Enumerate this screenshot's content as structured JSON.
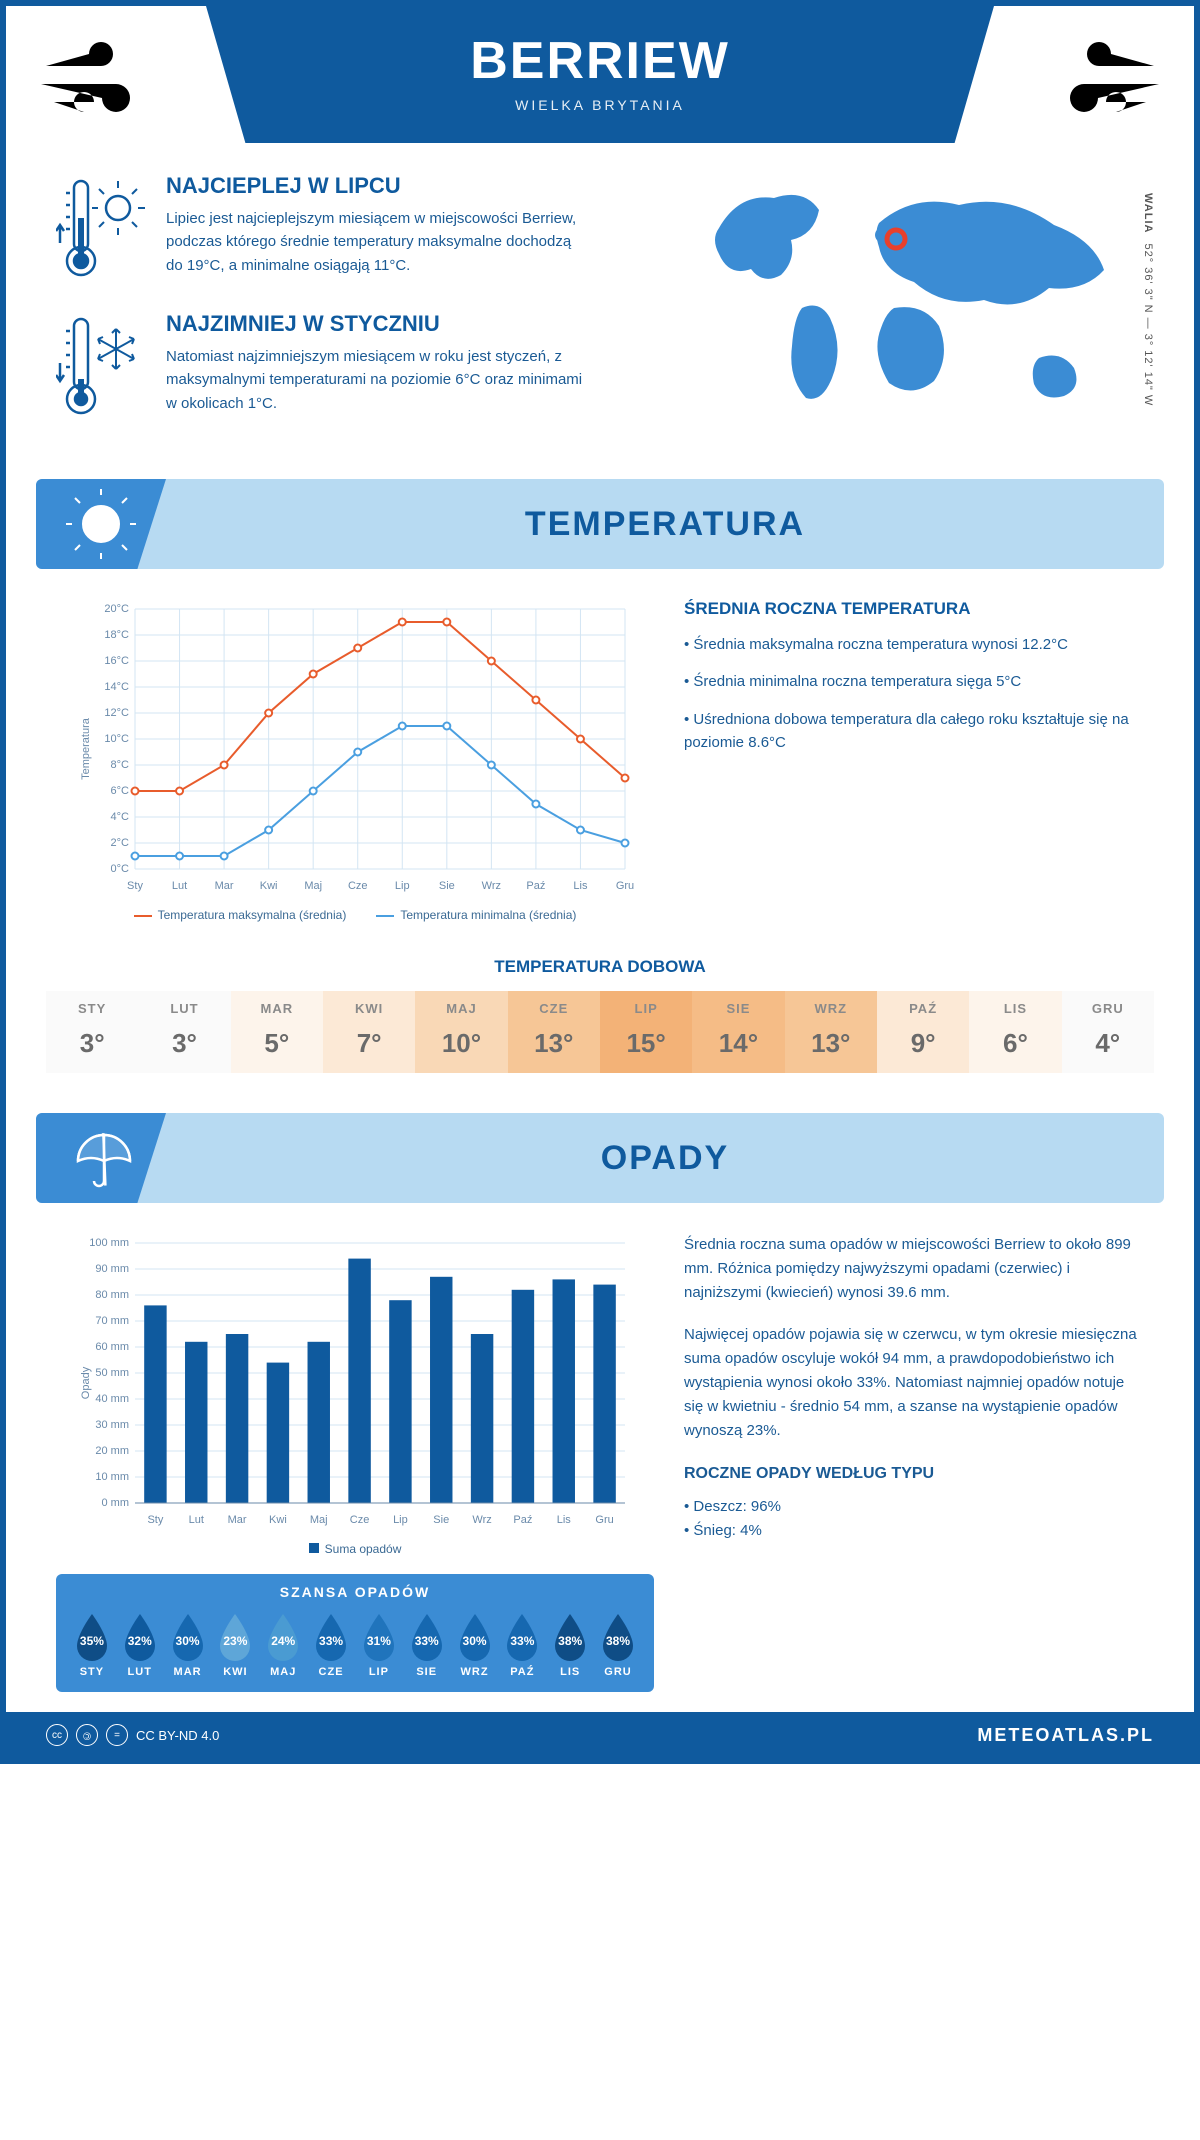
{
  "header": {
    "title": "BERRIEW",
    "subtitle": "WIELKA BRYTANIA"
  },
  "coords": {
    "region": "WALIA",
    "text": "52° 36' 3\" N — 3° 12' 14\" W"
  },
  "intro": {
    "hot": {
      "title": "NAJCIEPLEJ W LIPCU",
      "text": "Lipiec jest najcieplejszym miesiącem w miejscowości Berriew, podczas którego średnie temperatury maksymalne dochodzą do 19°C, a minimalne osiągają 11°C."
    },
    "cold": {
      "title": "NAJZIMNIEJ W STYCZNIU",
      "text": "Natomiast najzimniejszym miesiącem w roku jest styczeń, z maksymalnymi temperaturami na poziomie 6°C oraz minimami w okolicach 1°C."
    }
  },
  "months_short": [
    "Sty",
    "Lut",
    "Mar",
    "Kwi",
    "Maj",
    "Cze",
    "Lip",
    "Sie",
    "Wrz",
    "Paź",
    "Lis",
    "Gru"
  ],
  "months_upper": [
    "STY",
    "LUT",
    "MAR",
    "KWI",
    "MAJ",
    "CZE",
    "LIP",
    "SIE",
    "WRZ",
    "PAŹ",
    "LIS",
    "GRU"
  ],
  "temperature": {
    "banner": "TEMPERATURA",
    "chart": {
      "type": "line",
      "ylabel": "Temperatura",
      "ylim": [
        0,
        20
      ],
      "ytick_step": 2,
      "ytick_suffix": "°C",
      "grid_color": "#d3e5f3",
      "series": [
        {
          "name": "Temperatura maksymalna (średnia)",
          "color": "#e85c2c",
          "values": [
            6,
            6,
            8,
            12,
            15,
            17,
            19,
            19,
            16,
            13,
            10,
            7
          ]
        },
        {
          "name": "Temperatura minimalna (średnia)",
          "color": "#4a9fe0",
          "values": [
            1,
            1,
            1,
            3,
            6,
            9,
            11,
            11,
            8,
            5,
            3,
            2
          ]
        }
      ]
    },
    "side": {
      "title": "ŚREDNIA ROCZNA TEMPERATURA",
      "bullets": [
        "Średnia maksymalna roczna temperatura wynosi 12.2°C",
        "Średnia minimalna roczna temperatura sięga 5°C",
        "Uśredniona dobowa temperatura dla całego roku kształtuje się na poziomie 8.6°C"
      ]
    },
    "daily": {
      "title": "TEMPERATURA DOBOWA",
      "values": [
        3,
        3,
        5,
        7,
        10,
        13,
        15,
        14,
        13,
        9,
        6,
        4
      ],
      "colors": [
        "#fafafa",
        "#fafafa",
        "#fdf4eb",
        "#fce9d6",
        "#f9d8b6",
        "#f6c696",
        "#f3b277",
        "#f5bc86",
        "#f6c696",
        "#fce9d6",
        "#fdf4eb",
        "#fafafa"
      ]
    }
  },
  "precip": {
    "banner": "OPADY",
    "chart": {
      "type": "bar",
      "ylabel": "Opady",
      "ylim": [
        0,
        100
      ],
      "ytick_step": 10,
      "ytick_suffix": " mm",
      "bar_color": "#0f5a9e",
      "legend": "Suma opadów",
      "values": [
        76,
        62,
        65,
        54,
        62,
        94,
        78,
        87,
        65,
        82,
        86,
        84
      ]
    },
    "text1": "Średnia roczna suma opadów w miejscowości Berriew to około 899 mm. Różnica pomiędzy najwyższymi opadami (czerwiec) i najniższymi (kwiecień) wynosi 39.6 mm.",
    "text2": "Najwięcej opadów pojawia się w czerwcu, w tym okresie miesięczna suma opadów oscyluje wokół 94 mm, a prawdopodobieństwo ich wystąpienia wynosi około 33%. Natomiast najmniej opadów notuje się w kwietniu - średnio 54 mm, a szanse na wystąpienie opadów wynoszą 23%.",
    "chance": {
      "title": "SZANSA OPADÓW",
      "values": [
        35,
        32,
        30,
        23,
        24,
        33,
        31,
        33,
        30,
        33,
        38,
        38
      ],
      "colors": [
        "#0f4d86",
        "#0f5a9e",
        "#1668b0",
        "#5ea6d8",
        "#4a9bd2",
        "#1668b0",
        "#2074bc",
        "#1668b0",
        "#1668b0",
        "#1668b0",
        "#0f4d86",
        "#0f4d86"
      ]
    },
    "type": {
      "title": "ROCZNE OPADY WEDŁUG TYPU",
      "lines": [
        "Deszcz: 96%",
        "Śnieg: 4%"
      ]
    }
  },
  "footer": {
    "license": "CC BY-ND 4.0",
    "site": "METEOATLAS.PL"
  }
}
